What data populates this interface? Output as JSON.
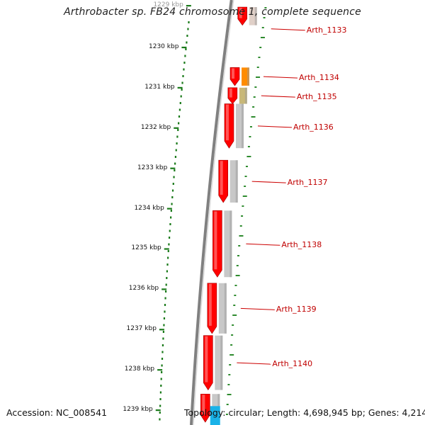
{
  "title": "Arthrobacter sp. FB24 chromosome 1, complete sequence",
  "accession_text": "Accession: NC_008541",
  "summary_text": "Topology: circular; Length: 4,698,945 bp; Genes: 4,214",
  "ruler": {
    "unit": "kbp",
    "labels": [
      "1229 kbp",
      "1230 kbp",
      "1231 kbp",
      "1232 kbp",
      "1233 kbp",
      "1234 kbp",
      "1235 kbp",
      "1236 kbp",
      "1237 kbp",
      "1238 kbp",
      "1239 kbp"
    ],
    "positions_kbp": [
      1229,
      1230,
      1231,
      1232,
      1233,
      1234,
      1235,
      1236,
      1237,
      1238,
      1239
    ]
  },
  "genes": [
    {
      "label": "Arth_1133",
      "start_kbp": 1229.0,
      "end_kbp": 1229.45,
      "cog_color": "#e0d0c8"
    },
    {
      "label": "Arth_1134",
      "start_kbp": 1230.5,
      "end_kbp": 1230.95,
      "cog_color": "#ff8c00"
    },
    {
      "label": "Arth_1135",
      "start_kbp": 1231.0,
      "end_kbp": 1231.4,
      "cog_color": "#c8b878"
    },
    {
      "label": "Arth_1136",
      "start_kbp": 1231.4,
      "end_kbp": 1232.5,
      "cog_color": "#c8c8c8"
    },
    {
      "label": "Arth_1137",
      "start_kbp": 1232.8,
      "end_kbp": 1233.85,
      "cog_color": "#c8c8c8"
    },
    {
      "label": "Arth_1138",
      "start_kbp": 1234.05,
      "end_kbp": 1235.7,
      "cog_color": "#c8c8c8"
    },
    {
      "label": "Arth_1139",
      "start_kbp": 1235.85,
      "end_kbp": 1237.1,
      "cog_color": "#c8c8c8"
    },
    {
      "label": "Arth_1140",
      "start_kbp": 1237.15,
      "end_kbp": 1238.5,
      "cog_color": "#c8c8c8"
    },
    {
      "label": "",
      "start_kbp": 1238.6,
      "end_kbp": 1239.3,
      "cog_color": "#c8c8c8"
    }
  ],
  "extra_segments": [
    {
      "start_kbp": 1238.9,
      "end_kbp": 1239.4,
      "color": "#1ab2e8"
    }
  ],
  "colors": {
    "backbone": "#808080",
    "gene_fill": "#ff0000",
    "gene_label": "#cc0000",
    "ruler": "#1a7a1a",
    "feature_ticks": "#2e8b2e"
  }
}
